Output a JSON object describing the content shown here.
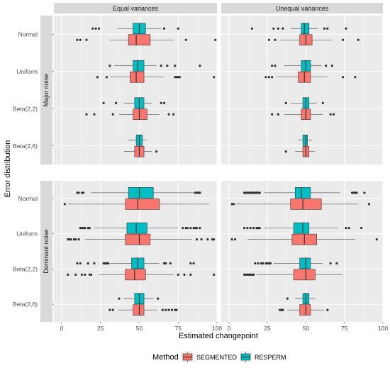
{
  "chart_data": {
    "type": "boxplot",
    "xlabel": "Estimated changepoint",
    "ylabel": "Error distribution",
    "xlim": [
      -5,
      100
    ],
    "xticks": [
      "0",
      "25",
      "50",
      "75",
      "100"
    ],
    "column_facets": [
      "Equal variances",
      "Unequal variances"
    ],
    "row_facets": [
      "Major noise",
      "Dominant noise"
    ],
    "categories": [
      "Normal",
      "Uniform",
      "Beta(2,2)",
      "Beta(2,6)"
    ],
    "legend": {
      "title": "Method",
      "position": "bottom"
    },
    "series": [
      {
        "name": "SEGMENTED",
        "color": "#F8766D"
      },
      {
        "name": "RESPERM",
        "color": "#00BFC4"
      }
    ],
    "panels": [
      {
        "row": 0,
        "col": 0,
        "groups": [
          {
            "category": "Normal",
            "series": [
              {
                "method": "SEGMENTED",
                "whislo": 31,
                "q1": 43,
                "med": 48,
                "q3": 57,
                "whishi": 72,
                "fliers": [
                  10,
                  12,
                  16,
                  80,
                  99
                ]
              },
              {
                "method": "RESPERM",
                "whislo": 36,
                "q1": 46,
                "med": 50,
                "q3": 54,
                "whishi": 64,
                "fliers": [
                  20,
                  22,
                  24,
                  66,
                  75
                ]
              }
            ]
          },
          {
            "category": "Uniform",
            "series": [
              {
                "method": "SEGMENTED",
                "whislo": 31,
                "q1": 44,
                "med": 48,
                "q3": 53,
                "whishi": 66,
                "fliers": [
                  23,
                  29,
                  73,
                  74,
                  75,
                  76,
                  98
                ]
              },
              {
                "method": "RESPERM",
                "whislo": 34,
                "q1": 46,
                "med": 49,
                "q3": 53,
                "whishi": 61,
                "fliers": [
                  31,
                  64,
                  68,
                  73,
                  89
                ]
              }
            ]
          },
          {
            "category": "Beta(2,2)",
            "series": [
              {
                "method": "SEGMENTED",
                "whislo": 37,
                "q1": 46,
                "med": 50,
                "q3": 55,
                "whishi": 63,
                "fliers": [
                  16,
                  21,
                  33,
                  69,
                  72
                ]
              },
              {
                "method": "RESPERM",
                "whislo": 40,
                "q1": 47,
                "med": 50,
                "q3": 53,
                "whishi": 58,
                "fliers": [
                  27,
                  35,
                  64,
                  66
                ]
              }
            ]
          },
          {
            "category": "Beta(2,6)",
            "series": [
              {
                "method": "SEGMENTED",
                "whislo": 40,
                "q1": 47,
                "med": 50,
                "q3": 53,
                "whishi": 58,
                "fliers": [
                  61
                ]
              },
              {
                "method": "RESPERM",
                "whislo": 43,
                "q1": 48,
                "med": 50,
                "q3": 52,
                "whishi": 55,
                "fliers": []
              }
            ]
          }
        ]
      },
      {
        "row": 0,
        "col": 1,
        "groups": [
          {
            "category": "Normal",
            "series": [
              {
                "method": "SEGMENTED",
                "whislo": 33,
                "q1": 46,
                "med": 50,
                "q3": 54,
                "whishi": 67,
                "fliers": [
                  26,
                  30,
                  74,
                  84
                ]
              },
              {
                "method": "RESPERM",
                "whislo": 40,
                "q1": 47,
                "med": 49,
                "q3": 52,
                "whishi": 58,
                "fliers": [
                  15,
                  29,
                  32,
                  35,
                  62,
                  64,
                  76
                ]
              }
            ]
          },
          {
            "category": "Uniform",
            "series": [
              {
                "method": "SEGMENTED",
                "whislo": 31,
                "q1": 45,
                "med": 49,
                "q3": 53,
                "whishi": 64,
                "fliers": [
                  24,
                  26,
                  28,
                  74,
                  82
                ]
              },
              {
                "method": "RESPERM",
                "whislo": 36,
                "q1": 47,
                "med": 50,
                "q3": 53,
                "whishi": 60,
                "fliers": [
                  28,
                  30,
                  63,
                  67
                ]
              }
            ]
          },
          {
            "category": "Beta(2,2)",
            "series": [
              {
                "method": "SEGMENTED",
                "whislo": 36,
                "q1": 47,
                "med": 50,
                "q3": 53,
                "whishi": 61,
                "fliers": [
                  28,
                  32,
                  66,
                  68
                ]
              },
              {
                "method": "RESPERM",
                "whislo": 40,
                "q1": 48,
                "med": 50,
                "q3": 52,
                "whishi": 57,
                "fliers": [
                  37,
                  61
                ]
              }
            ]
          },
          {
            "category": "Beta(2,6)",
            "series": [
              {
                "method": "SEGMENTED",
                "whislo": 43,
                "q1": 48,
                "med": 50,
                "q3": 52,
                "whishi": 56,
                "fliers": [
                  37
                ]
              },
              {
                "method": "RESPERM",
                "whislo": 45,
                "q1": 48,
                "med": 50,
                "q3": 51,
                "whishi": 54,
                "fliers": []
              }
            ]
          }
        ]
      },
      {
        "row": 1,
        "col": 0,
        "groups": [
          {
            "category": "Normal",
            "series": [
              {
                "method": "SEGMENTED",
                "whislo": 4,
                "q1": 41,
                "med": 49,
                "q3": 63,
                "whishi": 95,
                "fliers": [
                  2
                ]
              },
              {
                "method": "RESPERM",
                "whislo": 19,
                "q1": 43,
                "med": 50,
                "q3": 59,
                "whishi": 85,
                "fliers": [
                  10,
                  11,
                  13,
                  14,
                  86,
                  87,
                  88,
                  89
                ]
              }
            ]
          },
          {
            "category": "Uniform",
            "series": [
              {
                "method": "SEGMENTED",
                "whislo": 15,
                "q1": 41,
                "med": 50,
                "q3": 57,
                "whishi": 84,
                "fliers": [
                  4,
                  5,
                  6,
                  8,
                  9,
                  11,
                  87,
                  90,
                  94,
                  97,
                  98
                ]
              },
              {
                "method": "RESPERM",
                "whislo": 21,
                "q1": 42,
                "med": 48,
                "q3": 55,
                "whishi": 75,
                "fliers": [
                  12,
                  13,
                  14,
                  15,
                  17,
                  18,
                  78,
                  80,
                  81,
                  83,
                  85,
                  86,
                  87,
                  89
                ]
              }
            ]
          },
          {
            "category": "Beta(2,2)",
            "series": [
              {
                "method": "SEGMENTED",
                "whislo": 24,
                "q1": 41,
                "med": 47,
                "q3": 54,
                "whishi": 72,
                "fliers": [
                  4,
                  9,
                  13,
                  15,
                  18,
                  19,
                  75,
                  79,
                  83,
                  98
                ]
              },
              {
                "method": "RESPERM",
                "whislo": 31,
                "q1": 45,
                "med": 49,
                "q3": 53,
                "whishi": 63,
                "fliers": [
                  10,
                  12,
                  17,
                  21,
                  27,
                  28,
                  29,
                  30,
                  66,
                  67,
                  70,
                  83,
                  85
                ]
              }
            ]
          },
          {
            "category": "Beta(2,6)",
            "series": [
              {
                "method": "SEGMENTED",
                "whislo": 36,
                "q1": 46,
                "med": 50,
                "q3": 53,
                "whishi": 62,
                "fliers": [
                  31,
                  33,
                  65,
                  67,
                  69,
                  71,
                  73,
                  74
                ]
              },
              {
                "method": "RESPERM",
                "whislo": 40,
                "q1": 47,
                "med": 50,
                "q3": 53,
                "whishi": 59,
                "fliers": [
                  37,
                  62
                ]
              }
            ]
          }
        ]
      },
      {
        "row": 1,
        "col": 1,
        "groups": [
          {
            "category": "Normal",
            "series": [
              {
                "method": "SEGMENTED",
                "whislo": 4,
                "q1": 40,
                "med": 48,
                "q3": 60,
                "whishi": 84,
                "fliers": [
                  2,
                  3,
                  91
                ]
              },
              {
                "method": "RESPERM",
                "whislo": 23,
                "q1": 43,
                "med": 47,
                "q3": 53,
                "whishi": 72,
                "fliers": [
                  10,
                  11,
                  12,
                  13,
                  14,
                  15,
                  16,
                  17,
                  18,
                  19,
                  20,
                  80,
                  81,
                  82,
                  83,
                  88
                ]
              }
            ]
          },
          {
            "category": "Uniform",
            "series": [
              {
                "method": "SEGMENTED",
                "whislo": 12,
                "q1": 41,
                "med": 49,
                "q3": 57,
                "whishi": 82,
                "fliers": [
                  2,
                  4,
                  96
                ]
              },
              {
                "method": "RESPERM",
                "whislo": 23,
                "q1": 42,
                "med": 48,
                "q3": 52,
                "whishi": 71,
                "fliers": [
                  10,
                  12,
                  14,
                  16,
                  18,
                  19,
                  20,
                  76,
                  78,
                  86
                ]
              }
            ]
          },
          {
            "category": "Beta(2,2)",
            "series": [
              {
                "method": "SEGMENTED",
                "whislo": 18,
                "q1": 42,
                "med": 50,
                "q3": 56,
                "whishi": 74,
                "fliers": [
                  10,
                  11,
                  12,
                  13,
                  14,
                  15,
                  16
                ]
              },
              {
                "method": "RESPERM",
                "whislo": 29,
                "q1": 46,
                "med": 50,
                "q3": 53,
                "whishi": 61,
                "fliers": [
                  17,
                  19,
                  21,
                  22,
                  24,
                  25,
                  26,
                  27,
                  66,
                  70
                ]
              }
            ]
          },
          {
            "category": "Beta(2,6)",
            "series": [
              {
                "method": "SEGMENTED",
                "whislo": 38,
                "q1": 46,
                "med": 50,
                "q3": 53,
                "whishi": 62,
                "fliers": [
                  33,
                  34,
                  35,
                  64
                ]
              },
              {
                "method": "RESPERM",
                "whislo": 43,
                "q1": 48,
                "med": 50,
                "q3": 52,
                "whishi": 56,
                "fliers": [
                  38
                ]
              }
            ]
          }
        ]
      }
    ]
  }
}
